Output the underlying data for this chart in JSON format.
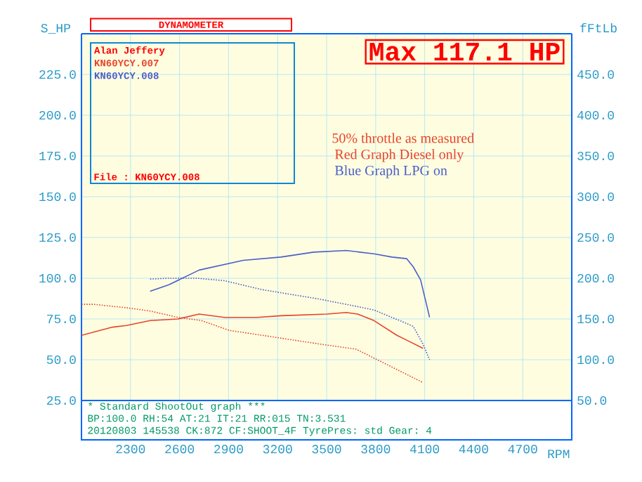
{
  "chart_data": {
    "type": "line",
    "xlabel": "RPM",
    "ylabel": "S_HP",
    "y2label": "fFtLb",
    "legend_title": "Alan Jeffery",
    "xlim": [
      2000,
      5000
    ],
    "xticks": [
      2300,
      2600,
      2900,
      3200,
      3500,
      3800,
      4100,
      4400,
      4700
    ],
    "ylim": [
      25,
      250
    ],
    "yticks": [
      {
        "value": 25,
        "label": "25.0"
      },
      {
        "value": 50,
        "label": "50.0"
      },
      {
        "value": 75,
        "label": "75.0"
      },
      {
        "value": 100,
        "label": "100.0"
      },
      {
        "value": 125,
        "label": "125.0"
      },
      {
        "value": 150,
        "label": "150.0"
      },
      {
        "value": 175,
        "label": "175.0"
      },
      {
        "value": 200,
        "label": "200.0"
      },
      {
        "value": 225,
        "label": "225.0"
      }
    ],
    "y2lim": [
      50,
      500
    ],
    "y2ticks": [
      {
        "value": 50,
        "label": "50.0"
      },
      {
        "value": 100,
        "label": "100.0"
      },
      {
        "value": 150,
        "label": "150.0"
      },
      {
        "value": 200,
        "label": "200.0"
      },
      {
        "value": 250,
        "label": "250.0"
      },
      {
        "value": 300,
        "label": "300.0"
      },
      {
        "value": 350,
        "label": "350.0"
      },
      {
        "value": 400,
        "label": "400.0"
      },
      {
        "value": 450,
        "label": "450.0"
      }
    ],
    "grid": true,
    "legend": "top left",
    "marker": "none",
    "series": [
      {
        "name": "KN60YCY.007",
        "color": "#e8442a",
        "line_style": "solid",
        "x": [
          2000,
          2190,
          2275,
          2420,
          2590,
          2720,
          2875,
          3075,
          3220,
          3500,
          3620,
          3690,
          3790,
          3930,
          3990,
          4090
        ],
        "values": [
          65,
          70,
          71,
          74,
          75,
          78,
          76,
          76,
          77,
          78,
          79,
          78,
          74,
          65,
          62,
          57
        ]
      },
      {
        "color": "#e8442a",
        "line_style": "dotted",
        "axis": "y2",
        "x": [
          2000,
          2075,
          2265,
          2415,
          2590,
          2735,
          2905,
          3105,
          3335,
          3500,
          3680,
          3790,
          3930,
          4090
        ],
        "values": [
          168,
          168,
          164,
          160,
          152,
          148,
          136,
          130,
          123,
          118,
          113,
          102,
          88,
          72
        ]
      },
      {
        "name": "KN60YCY.008",
        "color": "#4a5fc8",
        "line_style": "solid",
        "x": [
          2420,
          2535,
          2720,
          2990,
          3220,
          3420,
          3620,
          3790,
          3900,
          3990,
          4030,
          4075,
          4130
        ],
        "values": [
          92,
          96,
          105,
          111,
          113,
          116,
          117,
          115,
          113,
          112,
          107,
          99,
          76
        ]
      },
      {
        "color": "#4a5fc8",
        "line_style": "dotted",
        "axis": "y2",
        "x": [
          2420,
          2535,
          2705,
          2875,
          3105,
          3440,
          3670,
          3790,
          3960,
          4030,
          4090,
          4130
        ],
        "values": [
          199,
          200,
          200,
          197,
          186,
          175,
          166,
          161,
          147,
          141,
          119,
          100
        ]
      }
    ],
    "annotations": [
      "DYNAMOMETER",
      "Max 117.1 HP",
      "50% throttle as measured",
      "Red Graph Diesel only",
      "Blue Graph LPG on",
      "File    : KN60YCY.008",
      "* Standard ShootOut graph ***",
      "BP:100.0 RH:54 AT:21 IT:21  RR:015 TN:3.531",
      "20120803 145538 CK:872 CF:SHOOT_4F TyrePres: std      Gear: 4"
    ]
  }
}
